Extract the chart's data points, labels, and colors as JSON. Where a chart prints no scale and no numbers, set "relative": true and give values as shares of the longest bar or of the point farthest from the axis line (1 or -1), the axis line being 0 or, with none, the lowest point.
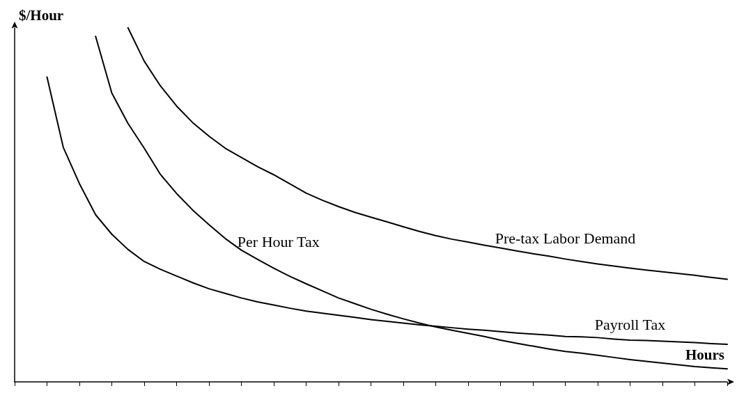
{
  "chart_data": {
    "type": "line",
    "relative": true,
    "ylabel": "$/Hour",
    "xlabel": "Hours",
    "grid": false,
    "legend": false,
    "marker": "none",
    "line_style": "solid",
    "categories": [
      null,
      null,
      null,
      null,
      null,
      null,
      null,
      null,
      null,
      null,
      null,
      null,
      null,
      null,
      null,
      null,
      null,
      null,
      null,
      null,
      null,
      null,
      null,
      null,
      null,
      null,
      null,
      null,
      null,
      null,
      null,
      null,
      null,
      null,
      null,
      null,
      null,
      null,
      null,
      null,
      null,
      null,
      null,
      null,
      null
    ],
    "series": [
      {
        "name": "Payroll Tax",
        "color": "#000000",
        "values": [
          null,
          null,
          0.861,
          0.663,
          0.56,
          0.472,
          0.417,
          0.374,
          0.34,
          0.318,
          0.299,
          0.28,
          0.263,
          0.25,
          0.237,
          0.226,
          0.217,
          0.208,
          0.2,
          0.194,
          0.188,
          0.182,
          0.176,
          0.171,
          0.166,
          0.161,
          0.157,
          0.153,
          0.149,
          0.146,
          0.142,
          0.138,
          0.135,
          0.132,
          0.128,
          0.127,
          0.125,
          0.121,
          0.118,
          0.117,
          0.115,
          0.113,
          0.111,
          0.108,
          0.106
        ]
      },
      {
        "name": "Per Hour Tax",
        "color": "#000000",
        "values": [
          null,
          null,
          null,
          null,
          null,
          0.976,
          0.816,
          0.73,
          0.66,
          0.586,
          0.532,
          0.485,
          0.444,
          0.405,
          0.372,
          0.346,
          0.321,
          0.298,
          0.277,
          0.257,
          0.237,
          0.221,
          0.205,
          0.191,
          0.178,
          0.166,
          0.155,
          0.146,
          0.137,
          0.128,
          0.118,
          0.109,
          0.101,
          0.093,
          0.086,
          0.081,
          0.075,
          0.069,
          0.063,
          0.058,
          0.053,
          0.048,
          0.043,
          0.04,
          0.037
        ]
      },
      {
        "name": "Pre-tax Labor Demand",
        "color": "#000000",
        "values": [
          null,
          null,
          null,
          null,
          null,
          null,
          null,
          1,
          0.906,
          0.836,
          0.779,
          0.732,
          0.694,
          0.66,
          0.634,
          0.608,
          0.585,
          0.559,
          0.533,
          0.513,
          0.495,
          0.479,
          0.465,
          0.452,
          0.438,
          0.425,
          0.413,
          0.403,
          0.395,
          0.386,
          0.378,
          0.37,
          0.362,
          0.355,
          0.347,
          0.34,
          0.333,
          0.327,
          0.321,
          0.316,
          0.311,
          0.306,
          0.301,
          0.295,
          0.29
        ]
      }
    ]
  }
}
